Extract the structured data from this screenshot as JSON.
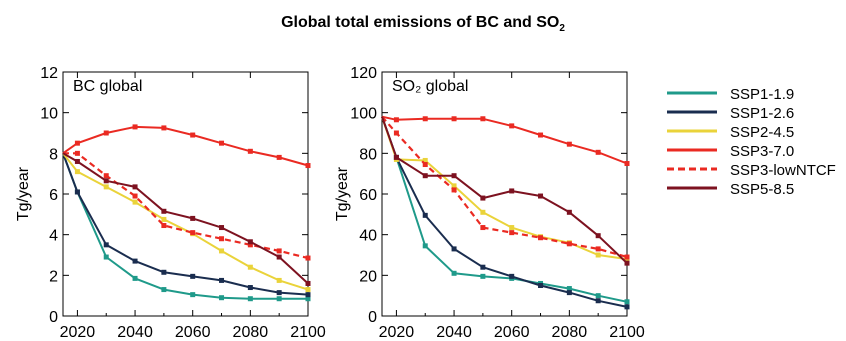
{
  "title_main": "Global total emissions of BC and SO",
  "title_sub": "2",
  "legend_entries": [
    {
      "name": "SSP1-1.9",
      "color": "#1f9a8a",
      "dashed": false
    },
    {
      "name": "SSP1-2.6",
      "color": "#1a2d4f",
      "dashed": false
    },
    {
      "name": "SSP2-4.5",
      "color": "#ead33a",
      "dashed": false
    },
    {
      "name": "SSP3-7.0",
      "color": "#ea2a22",
      "dashed": false
    },
    {
      "name": "SSP3-lowNTCF",
      "color": "#ea2a22",
      "dashed": true
    },
    {
      "name": "SSP5-8.5",
      "color": "#7d1220",
      "dashed": false
    }
  ],
  "chart_data": [
    {
      "type": "line",
      "panel_label": "BC global",
      "ylabel": "Tg/year",
      "xlim": [
        2015,
        2100
      ],
      "ylim": [
        0,
        12
      ],
      "xticks": [
        2020,
        2040,
        2060,
        2080,
        2100
      ],
      "yticks": [
        0,
        2,
        4,
        6,
        8,
        10,
        12
      ],
      "x": [
        2015,
        2020,
        2030,
        2040,
        2050,
        2060,
        2070,
        2080,
        2090,
        2100
      ],
      "series": [
        {
          "name": "SSP1-1.9",
          "values": [
            8.0,
            6.1,
            2.9,
            1.85,
            1.3,
            1.05,
            0.9,
            0.85,
            0.85,
            0.85
          ]
        },
        {
          "name": "SSP1-2.6",
          "values": [
            8.0,
            6.1,
            3.5,
            2.7,
            2.15,
            1.95,
            1.75,
            1.4,
            1.15,
            1.05
          ]
        },
        {
          "name": "SSP2-4.5",
          "values": [
            8.0,
            7.1,
            6.35,
            5.6,
            4.75,
            4.05,
            3.2,
            2.4,
            1.75,
            1.3
          ]
        },
        {
          "name": "SSP3-7.0",
          "values": [
            8.0,
            8.5,
            9.0,
            9.3,
            9.25,
            8.9,
            8.5,
            8.1,
            7.8,
            7.4
          ]
        },
        {
          "name": "SSP3-lowNTCF",
          "values": [
            8.0,
            8.0,
            6.9,
            5.9,
            4.45,
            4.1,
            3.8,
            3.5,
            3.2,
            2.85
          ]
        },
        {
          "name": "SSP5-8.5",
          "values": [
            8.0,
            7.6,
            6.65,
            6.35,
            5.15,
            4.8,
            4.35,
            3.65,
            2.9,
            1.6
          ]
        }
      ]
    },
    {
      "type": "line",
      "panel_label": "SO₂ global",
      "ylabel": "Tg/year",
      "xlim": [
        2015,
        2100
      ],
      "ylim": [
        0,
        120
      ],
      "xticks": [
        2020,
        2040,
        2060,
        2080,
        2100
      ],
      "yticks": [
        0,
        20,
        40,
        60,
        80,
        100,
        120
      ],
      "x": [
        2015,
        2020,
        2030,
        2040,
        2050,
        2060,
        2070,
        2080,
        2090,
        2100
      ],
      "series": [
        {
          "name": "SSP1-1.9",
          "values": [
            98,
            78,
            34.5,
            21,
            19.5,
            18.5,
            16,
            13.5,
            10,
            7
          ]
        },
        {
          "name": "SSP1-2.6",
          "values": [
            98,
            78,
            49.5,
            33,
            24,
            19.5,
            15,
            11.5,
            7.5,
            4.5
          ]
        },
        {
          "name": "SSP2-4.5",
          "values": [
            98,
            77,
            76.5,
            64,
            51,
            43.5,
            39,
            36,
            30,
            28
          ]
        },
        {
          "name": "SSP3-7.0",
          "values": [
            98,
            96.5,
            97,
            97,
            97,
            93.5,
            89,
            84.5,
            80.5,
            75
          ]
        },
        {
          "name": "SSP3-lowNTCF",
          "values": [
            98,
            90,
            74.5,
            62,
            43.5,
            41,
            38.5,
            35.5,
            33,
            29
          ]
        },
        {
          "name": "SSP5-8.5",
          "values": [
            98,
            78,
            69,
            69,
            58,
            61.5,
            59,
            51,
            39.5,
            26
          ]
        }
      ]
    }
  ]
}
